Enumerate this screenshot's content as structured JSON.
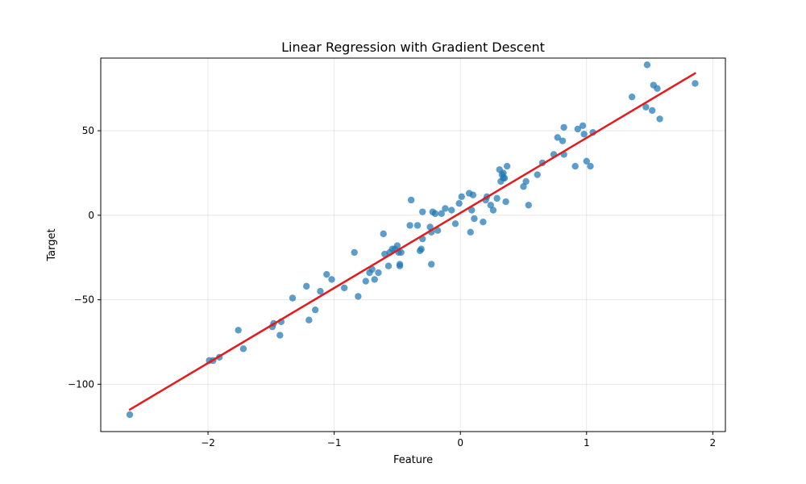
{
  "chart_data": {
    "type": "scatter",
    "title": "Linear Regression with Gradient Descent",
    "xlabel": "Feature",
    "ylabel": "Target",
    "xlim": [
      -2.85,
      2.1
    ],
    "ylim": [
      -128,
      93
    ],
    "xticks": [
      -2,
      -1,
      0,
      1,
      2
    ],
    "xtick_labels": [
      "−2",
      "−1",
      "0",
      "1",
      "2"
    ],
    "yticks": [
      -100,
      -50,
      0,
      50
    ],
    "ytick_labels": [
      "−100",
      "−50",
      "0",
      "50"
    ],
    "grid": true,
    "legend": "none",
    "colors": {
      "points": "#1f77b4",
      "line": "#e41a1c",
      "grid": "#b0b0b0"
    },
    "series": [
      {
        "type": "scatter",
        "x": [
          -2.62,
          -1.99,
          -1.96,
          -1.91,
          -1.76,
          -1.72,
          -1.49,
          -1.48,
          -1.43,
          -1.42,
          -1.33,
          -1.22,
          -1.2,
          -1.15,
          -1.11,
          -1.06,
          -1.02,
          -0.92,
          -0.84,
          -0.81,
          -0.75,
          -0.72,
          -0.7,
          -0.68,
          -0.65,
          -0.61,
          -0.6,
          -0.57,
          -0.56,
          -0.54,
          -0.52,
          -0.5,
          -0.49,
          -0.48,
          -0.48,
          -0.47,
          -0.4,
          -0.39,
          -0.34,
          -0.32,
          -0.31,
          -0.3,
          -0.3,
          -0.24,
          -0.23,
          -0.23,
          -0.22,
          -0.2,
          -0.18,
          -0.15,
          -0.12,
          -0.07,
          -0.04,
          -0.01,
          0.01,
          0.07,
          0.08,
          0.09,
          0.1,
          0.11,
          0.18,
          0.2,
          0.21,
          0.24,
          0.26,
          0.29,
          0.31,
          0.32,
          0.33,
          0.34,
          0.34,
          0.35,
          0.36,
          0.37,
          0.5,
          0.52,
          0.54,
          0.61,
          0.65,
          0.74,
          0.77,
          0.81,
          0.82,
          0.82,
          0.91,
          0.93,
          0.97,
          0.98,
          1.0,
          1.03,
          1.05,
          1.36,
          1.47,
          1.48,
          1.52,
          1.53,
          1.56,
          1.58,
          1.86
        ],
        "y": [
          -118,
          -86,
          -86,
          -84,
          -68,
          -79,
          -66,
          -64,
          -71,
          -63,
          -49,
          -42,
          -62,
          -56,
          -45,
          -35,
          -38,
          -43,
          -22,
          -48,
          -39,
          -34,
          -32,
          -38,
          -34,
          -11,
          -23,
          -30,
          -22,
          -20,
          -20,
          -18,
          -22,
          -29,
          -30,
          -22,
          -6,
          9,
          -6,
          -21,
          -20,
          2,
          -14,
          -7,
          -29,
          -10,
          2,
          1,
          -9,
          1,
          4,
          3,
          -5,
          7,
          11,
          13,
          -10,
          3,
          12,
          -2,
          -4,
          9,
          11,
          6,
          3,
          10,
          27,
          20,
          24,
          25,
          22,
          22,
          8,
          29,
          17,
          20,
          6,
          24,
          31,
          36,
          46,
          44,
          52,
          36,
          29,
          51,
          53,
          48,
          32,
          29,
          49,
          70,
          64,
          89,
          62,
          77,
          75,
          57,
          78
        ]
      },
      {
        "type": "line",
        "x": [
          -2.62,
          1.86
        ],
        "y": [
          -115,
          84
        ]
      }
    ]
  }
}
